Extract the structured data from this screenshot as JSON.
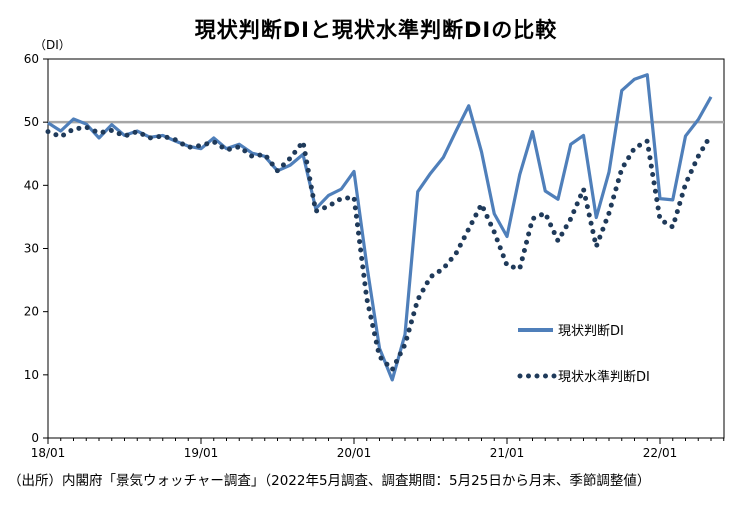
{
  "chart_data": {
    "type": "line",
    "title": "現状判断DIと現状水準判断DIの比較",
    "y_unit": "（DI）",
    "ylim": [
      0,
      60
    ],
    "y_ticks": [
      0,
      10,
      20,
      30,
      40,
      50,
      60
    ],
    "x_tick_labels": [
      "18/01",
      "19/01",
      "20/01",
      "21/01",
      "22/01"
    ],
    "x_start": "2018-01",
    "reference_line": 50,
    "grid": false,
    "legend_position": "right",
    "series": [
      {
        "name": "現状判断DI",
        "style": "solid",
        "color": "#4f7fba",
        "values": [
          49.9,
          48.6,
          50.5,
          49.7,
          47.5,
          49.6,
          47.9,
          48.6,
          47.6,
          47.9,
          47.0,
          46.2,
          45.8,
          47.5,
          45.8,
          46.5,
          45.1,
          44.6,
          42.3,
          43.2,
          44.9,
          36.3,
          38.4,
          39.4,
          42.2,
          27.4,
          14.2,
          9.2,
          16.4,
          39.0,
          41.9,
          44.4,
          48.6,
          52.6,
          45.3,
          35.5,
          31.9,
          41.7,
          48.5,
          39.1,
          37.8,
          46.5,
          47.9,
          34.9,
          42.1,
          55.0,
          56.8,
          57.5,
          37.9,
          37.7,
          47.8,
          50.4,
          54.0
        ]
      },
      {
        "name": "現状水準判断DI",
        "style": "dotted",
        "color": "#1f3a5a",
        "values": [
          48.5,
          47.7,
          48.9,
          49.2,
          48.3,
          48.7,
          47.8,
          48.5,
          47.5,
          47.8,
          47.2,
          46.0,
          46.3,
          46.9,
          45.6,
          46.1,
          44.6,
          44.9,
          42.3,
          44.3,
          46.9,
          35.9,
          36.7,
          37.9,
          38.1,
          22.1,
          12.9,
          10.8,
          14.8,
          21.9,
          25.5,
          26.8,
          29.2,
          33.1,
          37.0,
          32.6,
          27.3,
          26.8,
          34.7,
          35.6,
          31.2,
          34.7,
          39.4,
          30.3,
          35.6,
          42.6,
          45.9,
          47.0,
          34.6,
          33.4,
          40.2,
          44.6,
          48.0
        ]
      }
    ]
  },
  "source_note": "（出所）内閣府「景気ウォッチャー調査」（2022年5月調査、調査期間：5月25日から月末、季節調整値）"
}
